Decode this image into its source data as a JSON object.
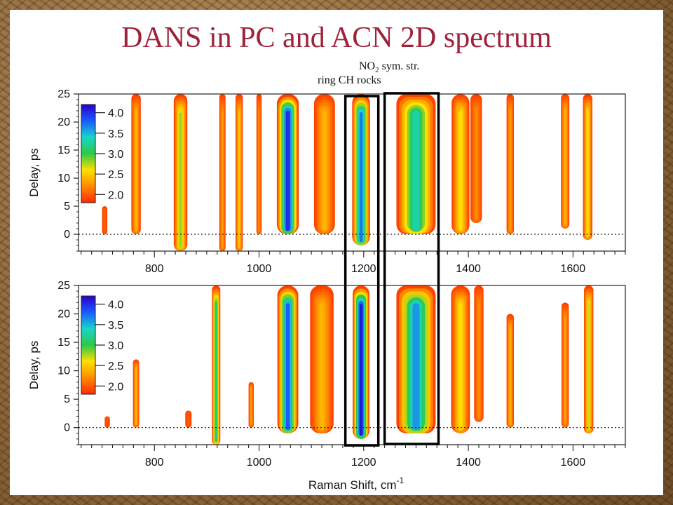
{
  "title": "DANS in PC and ACN 2D spectrum",
  "annotations": {
    "no2_prefix": "NO",
    "no2_sub": "2",
    "no2_suffix": " sym. str.",
    "ring_ch": "ring CH rocks"
  },
  "colors": {
    "title": "#a0213a",
    "scale": [
      "#ff2a00",
      "#ff8a00",
      "#ffe000",
      "#2ec84a",
      "#18d6c8",
      "#1a5aff",
      "#2a00c8"
    ]
  },
  "chart_data": [
    {
      "type": "heatmap",
      "panel": "top",
      "xlabel": "Raman Shift, cm",
      "xlabel_sup": "-1",
      "ylabel": "Delay, ps",
      "xlim": [
        655,
        1700
      ],
      "ylim": [
        -3,
        25
      ],
      "x_ticks": [
        800,
        1000,
        1200,
        1400,
        1600
      ],
      "y_ticks": [
        0,
        5,
        10,
        15,
        20,
        25
      ],
      "colorbar": {
        "ticks": [
          "4.0",
          "3.5",
          "3.0",
          "2.5",
          "2.0"
        ],
        "range": [
          1.8,
          4.2
        ]
      },
      "time_zero_line": 0,
      "bands": [
        {
          "center": 705,
          "width": 10,
          "peak": 2.0,
          "start": 0,
          "end": 5
        },
        {
          "center": 765,
          "width": 18,
          "peak": 2.4,
          "start": 0,
          "end": 25
        },
        {
          "center": 850,
          "width": 26,
          "peak": 2.8,
          "start": -3,
          "end": 25
        },
        {
          "center": 930,
          "width": 12,
          "peak": 2.3,
          "start": -3,
          "end": 25
        },
        {
          "center": 962,
          "width": 14,
          "peak": 2.5,
          "start": -3,
          "end": 25
        },
        {
          "center": 1000,
          "width": 10,
          "peak": 2.2,
          "start": 0,
          "end": 25
        },
        {
          "center": 1055,
          "width": 42,
          "peak": 4.0,
          "start": 0,
          "end": 25
        },
        {
          "center": 1125,
          "width": 40,
          "peak": 2.4,
          "start": 0,
          "end": 25
        },
        {
          "center": 1195,
          "width": 34,
          "peak": 3.7,
          "start": -2,
          "end": 25
        },
        {
          "center": 1300,
          "width": 75,
          "peak": 3.3,
          "start": 0,
          "end": 25
        },
        {
          "center": 1385,
          "width": 34,
          "peak": 2.6,
          "start": 0,
          "end": 25
        },
        {
          "center": 1415,
          "width": 22,
          "peak": 2.2,
          "start": 2,
          "end": 25
        },
        {
          "center": 1480,
          "width": 14,
          "peak": 2.3,
          "start": 0,
          "end": 25
        },
        {
          "center": 1585,
          "width": 16,
          "peak": 2.4,
          "start": 1,
          "end": 25
        },
        {
          "center": 1628,
          "width": 18,
          "peak": 2.6,
          "start": -1,
          "end": 25
        }
      ]
    },
    {
      "type": "heatmap",
      "panel": "bottom",
      "xlabel": "Raman Shift, cm",
      "xlabel_sup": "-1",
      "ylabel": "Delay, ps",
      "xlim": [
        655,
        1700
      ],
      "ylim": [
        -3,
        25
      ],
      "x_ticks": [
        800,
        1000,
        1200,
        1400,
        1600
      ],
      "y_ticks": [
        0,
        5,
        10,
        15,
        20,
        25
      ],
      "colorbar": {
        "ticks": [
          "4.0",
          "3.5",
          "3.0",
          "2.5",
          "2.0"
        ],
        "range": [
          1.8,
          4.2
        ]
      },
      "time_zero_line": 0,
      "bands": [
        {
          "center": 710,
          "width": 10,
          "peak": 2.0,
          "start": 0,
          "end": 2
        },
        {
          "center": 765,
          "width": 12,
          "peak": 2.4,
          "start": 0,
          "end": 12
        },
        {
          "center": 865,
          "width": 12,
          "peak": 2.0,
          "start": 0,
          "end": 3
        },
        {
          "center": 918,
          "width": 16,
          "peak": 3.2,
          "start": -3,
          "end": 25
        },
        {
          "center": 985,
          "width": 10,
          "peak": 2.3,
          "start": 0,
          "end": 8
        },
        {
          "center": 1055,
          "width": 40,
          "peak": 3.8,
          "start": -1,
          "end": 25
        },
        {
          "center": 1120,
          "width": 45,
          "peak": 2.4,
          "start": -1,
          "end": 25
        },
        {
          "center": 1195,
          "width": 32,
          "peak": 4.1,
          "start": -2,
          "end": 25
        },
        {
          "center": 1300,
          "width": 75,
          "peak": 3.6,
          "start": -1,
          "end": 25
        },
        {
          "center": 1385,
          "width": 36,
          "peak": 2.6,
          "start": -1,
          "end": 25
        },
        {
          "center": 1420,
          "width": 18,
          "peak": 2.2,
          "start": 1,
          "end": 25
        },
        {
          "center": 1480,
          "width": 14,
          "peak": 2.4,
          "start": 0,
          "end": 20
        },
        {
          "center": 1585,
          "width": 14,
          "peak": 2.3,
          "start": 0,
          "end": 22
        },
        {
          "center": 1630,
          "width": 18,
          "peak": 2.7,
          "start": -1,
          "end": 25
        }
      ]
    }
  ]
}
